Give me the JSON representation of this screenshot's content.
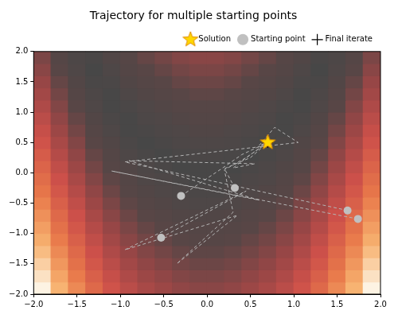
{
  "chart_data": {
    "type": "scatter",
    "title": "Trajectory for multiple starting points",
    "xlim": [
      -2,
      2
    ],
    "ylim": [
      -2,
      2
    ],
    "xticks": [
      {
        "value": -2,
        "label": "−2.0"
      },
      {
        "value": -1.5,
        "label": "−1.5"
      },
      {
        "value": -1,
        "label": "−1.0"
      },
      {
        "value": -0.5,
        "label": "−0.5"
      },
      {
        "value": 0,
        "label": "0.0"
      },
      {
        "value": 0.5,
        "label": "0.5"
      },
      {
        "value": 1,
        "label": "1.0"
      },
      {
        "value": 1.5,
        "label": "1.5"
      },
      {
        "value": 2,
        "label": "2.0"
      }
    ],
    "yticks": [
      {
        "value": -2,
        "label": "−2.0"
      },
      {
        "value": -1.5,
        "label": "−1.5"
      },
      {
        "value": -1,
        "label": "−1.0"
      },
      {
        "value": -0.5,
        "label": "−0.5"
      },
      {
        "value": 0,
        "label": "0.0"
      },
      {
        "value": 0.5,
        "label": "0.5"
      },
      {
        "value": 1,
        "label": "1.0"
      },
      {
        "value": 1.5,
        "label": "1.5"
      },
      {
        "value": 2,
        "label": "2.0"
      }
    ],
    "grid": false,
    "legend": "upper right",
    "heatmap": {
      "x_edges": [
        -2,
        -1.8,
        -1.6,
        -1.4,
        -1.2,
        -1,
        -0.8,
        -0.6,
        -0.4,
        -0.2,
        0,
        0.2,
        0.4,
        0.6,
        0.8,
        1,
        1.2,
        1.4,
        1.6,
        1.8,
        2
      ],
      "y_edges": [
        -2,
        -1.8,
        -1.6,
        -1.4,
        -1.2,
        -1,
        -0.8,
        -0.6,
        -0.4,
        -0.2,
        0,
        0.2,
        0.4,
        0.6,
        0.8,
        1,
        1.2,
        1.4,
        1.6,
        1.8,
        2
      ],
      "values": [
        [
          5.5,
          4.8,
          4.2,
          3.6,
          3.1,
          2.7,
          2.4,
          2.2,
          2.0,
          1.9,
          1.9,
          2.0,
          2.2,
          2.4,
          2.7,
          3.1,
          3.6,
          4.2,
          4.8,
          5.5
        ],
        [
          5.3,
          4.6,
          4.0,
          3.4,
          2.9,
          2.5,
          2.2,
          2.0,
          1.8,
          1.7,
          1.7,
          1.8,
          2.0,
          2.2,
          2.5,
          2.9,
          3.4,
          4.0,
          4.6,
          5.3
        ],
        [
          5.1,
          4.4,
          3.8,
          3.2,
          2.7,
          2.3,
          2.0,
          1.8,
          1.6,
          1.5,
          1.5,
          1.6,
          1.8,
          2.0,
          2.3,
          2.7,
          3.2,
          3.8,
          4.4,
          5.1
        ],
        [
          4.9,
          4.2,
          3.6,
          3.0,
          2.5,
          2.1,
          1.8,
          1.6,
          1.4,
          1.3,
          1.3,
          1.4,
          1.6,
          1.8,
          2.1,
          2.5,
          3.0,
          3.6,
          4.2,
          4.9
        ],
        [
          4.7,
          4.0,
          3.4,
          2.8,
          2.3,
          1.9,
          1.6,
          1.4,
          1.2,
          1.1,
          1.1,
          1.2,
          1.4,
          1.6,
          1.9,
          2.3,
          2.8,
          3.4,
          4.0,
          4.7
        ],
        [
          4.5,
          3.8,
          3.2,
          2.6,
          2.1,
          1.7,
          1.4,
          1.2,
          1.0,
          0.9,
          0.9,
          1.0,
          1.2,
          1.4,
          1.7,
          2.1,
          2.6,
          3.2,
          3.8,
          4.5
        ],
        [
          4.3,
          3.6,
          3.0,
          2.4,
          1.9,
          1.5,
          1.2,
          1.0,
          0.8,
          0.7,
          0.7,
          0.8,
          1.0,
          1.2,
          1.5,
          1.9,
          2.4,
          3.0,
          3.6,
          4.3
        ],
        [
          4.1,
          3.4,
          2.8,
          2.2,
          1.7,
          1.3,
          1.0,
          0.8,
          0.6,
          0.5,
          0.5,
          0.6,
          0.8,
          1.0,
          1.3,
          1.7,
          2.2,
          2.8,
          3.4,
          4.1
        ],
        [
          3.9,
          3.2,
          2.6,
          2.0,
          1.5,
          1.1,
          0.8,
          0.6,
          0.4,
          0.3,
          0.3,
          0.4,
          0.6,
          0.8,
          1.1,
          1.5,
          2.0,
          2.6,
          3.2,
          3.9
        ],
        [
          3.7,
          3.0,
          2.4,
          1.8,
          1.3,
          0.9,
          0.6,
          0.4,
          0.2,
          0.1,
          0.1,
          0.2,
          0.4,
          0.6,
          0.9,
          1.3,
          1.8,
          2.4,
          3.0,
          3.7
        ],
        [
          3.5,
          2.8,
          2.2,
          1.6,
          1.1,
          0.7,
          0.4,
          0.2,
          0.0,
          0.1,
          0.1,
          0.0,
          0.2,
          0.4,
          0.7,
          1.1,
          1.6,
          2.2,
          2.8,
          3.5
        ],
        [
          3.3,
          2.6,
          2.0,
          1.4,
          0.9,
          0.5,
          0.2,
          0.0,
          0.2,
          0.3,
          0.3,
          0.2,
          0.0,
          0.2,
          0.5,
          0.9,
          1.4,
          2.0,
          2.6,
          3.3
        ],
        [
          3.1,
          2.4,
          1.8,
          1.2,
          0.7,
          0.3,
          0.0,
          0.2,
          0.4,
          0.5,
          0.5,
          0.4,
          0.2,
          0.0,
          0.3,
          0.7,
          1.2,
          1.8,
          2.4,
          3.1
        ],
        [
          2.9,
          2.2,
          1.6,
          1.0,
          0.5,
          0.1,
          0.2,
          0.4,
          0.6,
          0.7,
          0.7,
          0.6,
          0.4,
          0.2,
          0.1,
          0.5,
          1.0,
          1.6,
          2.2,
          2.9
        ],
        [
          2.7,
          2.0,
          1.4,
          0.8,
          0.3,
          0.1,
          0.4,
          0.6,
          0.8,
          0.9,
          0.9,
          0.8,
          0.6,
          0.4,
          0.1,
          0.3,
          0.8,
          1.4,
          2.0,
          2.7
        ],
        [
          2.5,
          1.8,
          1.2,
          0.6,
          0.1,
          0.3,
          0.6,
          0.8,
          1.0,
          1.1,
          1.1,
          1.0,
          0.8,
          0.6,
          0.3,
          0.1,
          0.6,
          1.2,
          1.8,
          2.5
        ],
        [
          2.3,
          1.6,
          1.0,
          0.4,
          0.1,
          0.5,
          0.8,
          1.0,
          1.2,
          1.3,
          1.3,
          1.2,
          1.0,
          0.8,
          0.5,
          0.1,
          0.4,
          1.0,
          1.6,
          2.3
        ],
        [
          2.1,
          1.4,
          0.8,
          0.2,
          0.3,
          0.7,
          1.0,
          1.2,
          1.4,
          1.5,
          1.5,
          1.4,
          1.2,
          1.0,
          0.7,
          0.3,
          0.2,
          0.8,
          1.4,
          2.1
        ],
        [
          1.9,
          1.2,
          0.6,
          0.0,
          0.5,
          0.9,
          1.2,
          1.4,
          1.6,
          1.7,
          1.7,
          1.6,
          1.4,
          1.2,
          0.9,
          0.5,
          0.0,
          0.6,
          1.2,
          1.9
        ],
        [
          1.7,
          1.0,
          0.4,
          0.2,
          0.7,
          1.1,
          1.4,
          1.6,
          1.8,
          1.9,
          1.9,
          1.8,
          1.6,
          1.4,
          1.1,
          0.7,
          0.2,
          0.4,
          1.0,
          1.7
        ]
      ]
    },
    "series": [
      {
        "type": "line",
        "line_style": "dashed",
        "color": "#b4b4b4",
        "x": [
          1.74,
          -1.1,
          0.6,
          -0.9,
          0.55,
          0.3,
          0.5,
          0.7
        ],
        "y": [
          -0.76,
          0.03,
          -0.45,
          0.2,
          0.15,
          0.08,
          0.3,
          0.5
        ]
      },
      {
        "type": "line",
        "line_style": "dashed",
        "color": "#b4b4b4",
        "x": [
          1.62,
          -0.95,
          1.05,
          0.78,
          0.6,
          0.7
        ],
        "y": [
          -0.62,
          0.18,
          0.5,
          0.75,
          0.45,
          0.5
        ]
      },
      {
        "type": "line",
        "line_style": "dashed",
        "color": "#b4b4b4",
        "x": [
          -0.53,
          0.45,
          -0.95,
          0.35,
          -0.35,
          0.3,
          0.2,
          0.45,
          0.7
        ],
        "y": [
          -1.07,
          -0.3,
          -1.27,
          -0.7,
          -1.5,
          -0.65,
          0.05,
          0.25,
          0.5
        ]
      },
      {
        "type": "line",
        "line_style": "dashed",
        "color": "#b4b4b4",
        "x": [
          -0.3,
          0.2,
          0.4,
          0.7
        ],
        "y": [
          -0.38,
          0.1,
          0.3,
          0.5
        ]
      },
      {
        "type": "line",
        "line_style": "dashed",
        "color": "#b4b4b4",
        "x": [
          0.32,
          0.2,
          0.5,
          0.7
        ],
        "y": [
          -0.25,
          0.07,
          0.25,
          0.5
        ]
      },
      {
        "name": "Solution",
        "type": "scatter",
        "marker": "star",
        "color": "#ffd700",
        "x": [
          0.7
        ],
        "y": [
          0.5
        ]
      },
      {
        "name": "Starting point",
        "type": "scatter",
        "marker": "circle",
        "color": "#c0c0c0",
        "x": [
          -0.3,
          0.32,
          -0.53,
          1.62,
          1.74
        ],
        "y": [
          -0.38,
          -0.25,
          -1.07,
          -0.62,
          -0.76
        ]
      },
      {
        "name": "Final iterate",
        "type": "scatter",
        "marker": "cross",
        "color": "#000000",
        "x": [
          0.7,
          0.7,
          0.7,
          0.7,
          0.7
        ],
        "y": [
          0.5,
          0.5,
          0.5,
          0.5,
          0.5
        ]
      }
    ]
  }
}
